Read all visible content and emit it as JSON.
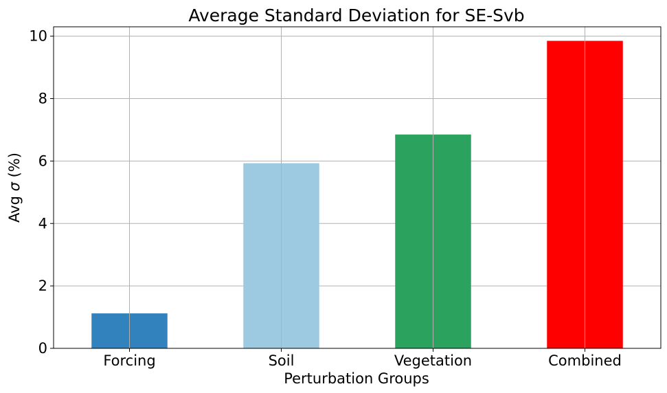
{
  "chart_data": {
    "type": "bar",
    "title": "Average Standard Deviation for SE-Svb",
    "xlabel": "Perturbation Groups",
    "ylabel_prefix": "Avg ",
    "ylabel_symbol": "σ",
    "ylabel_suffix": " (%)",
    "categories": [
      "Forcing",
      "Soil",
      "Vegetation",
      "Combined"
    ],
    "values": [
      1.12,
      5.93,
      6.85,
      9.85
    ],
    "colors": [
      "#3182bd",
      "#9ecae1",
      "#2ca25f",
      "#ff0000"
    ],
    "ylim": [
      0,
      10.3
    ],
    "yticks": [
      0,
      2,
      4,
      6,
      8,
      10
    ],
    "grid": true,
    "legend": "none"
  }
}
